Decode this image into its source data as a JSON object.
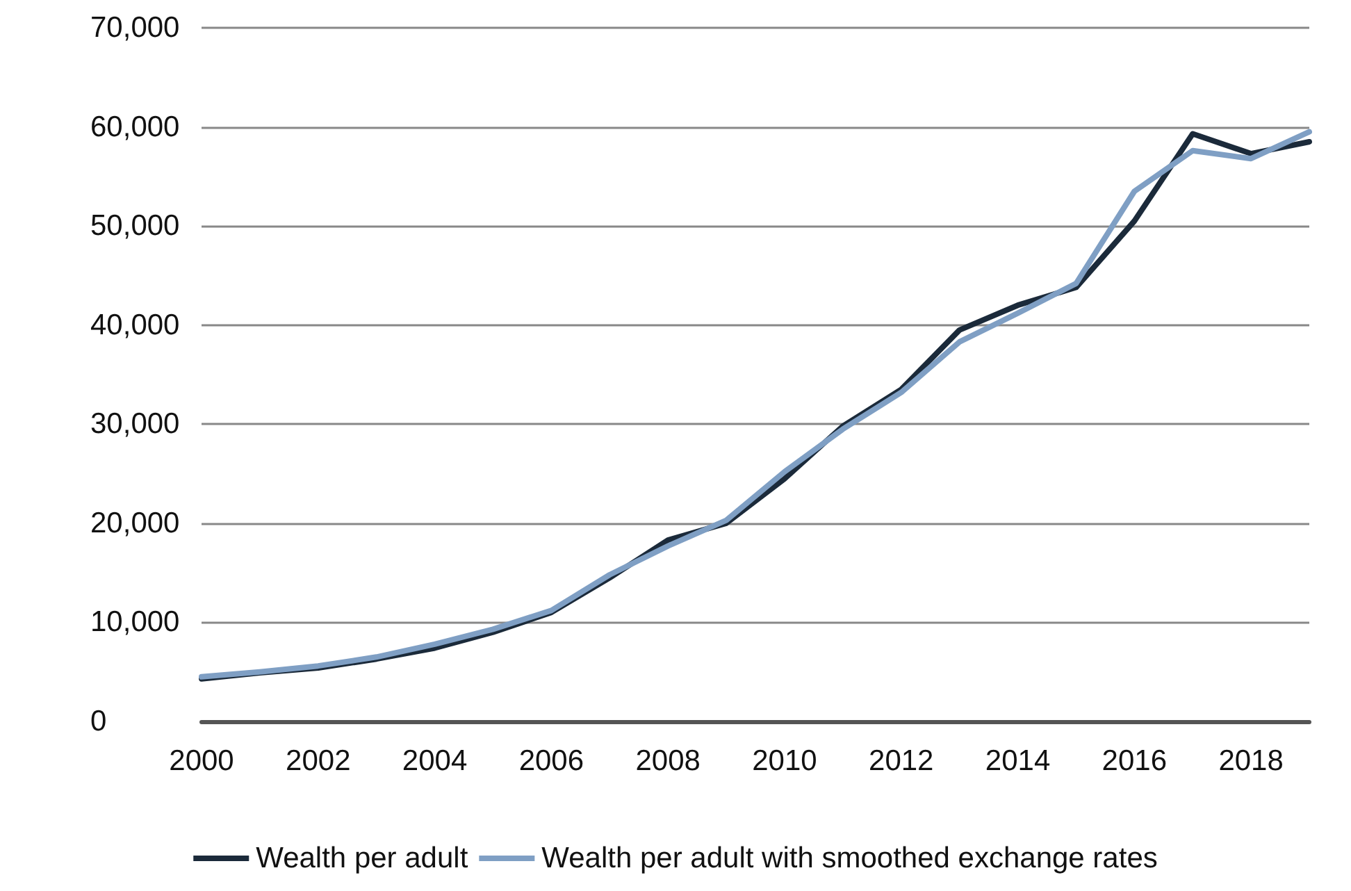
{
  "chart_data": {
    "type": "line",
    "categories": [
      "2000",
      null,
      "2002",
      null,
      "2004",
      null,
      "2006",
      null,
      "2008",
      null,
      "2010",
      null,
      "2012",
      null,
      "2014",
      null,
      "2016",
      null,
      "2018",
      null
    ],
    "series": [
      {
        "name": "Wealth per adult",
        "color": "#1b2a3a",
        "values": [
          4300,
          4900,
          5400,
          6300,
          7400,
          9000,
          11000,
          14500,
          18300,
          20000,
          24500,
          29800,
          33500,
          39500,
          42000,
          43800,
          50500,
          59300,
          57300,
          58500
        ]
      },
      {
        "name": "Wealth per adult with smoothed exchange rates",
        "color": "#7f9fc4",
        "values": [
          4500,
          5000,
          5600,
          6500,
          7800,
          9300,
          11200,
          14800,
          17700,
          20300,
          25200,
          29500,
          33200,
          38300,
          41200,
          44200,
          53500,
          57600,
          56800,
          59500
        ]
      }
    ],
    "ylim": [
      0,
      70000
    ],
    "yticks": [
      0,
      {
        "value": 10000,
        "label": "10,000"
      },
      {
        "value": 20000,
        "label": "20,000"
      },
      {
        "value": 30000,
        "label": "30,000"
      },
      {
        "value": 40000,
        "label": "40,000"
      },
      {
        "value": 50000,
        "label": "50,000"
      },
      {
        "value": 60000,
        "label": "60,000"
      },
      {
        "value": 70000,
        "label": "70,000"
      }
    ],
    "grid": "y",
    "legend": "bottom",
    "marker": "none",
    "line_style": "solid"
  }
}
